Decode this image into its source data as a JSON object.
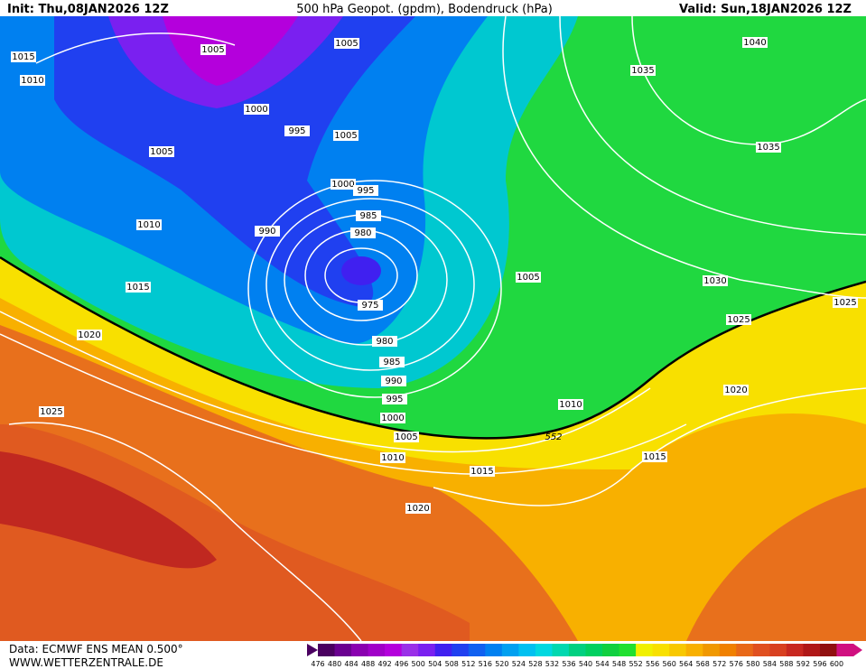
{
  "header": {
    "init": "Init: Thu,08JAN2026 12Z",
    "title": "500 hPa Geopot. (gpdm), Bodendruck (hPa)",
    "valid": "Valid: Sun,18JAN2026 12Z"
  },
  "contour_labels": [
    "1015",
    "1010",
    "1005",
    "1005",
    "1000",
    "995",
    "1005",
    "1005",
    "1000",
    "995",
    "985",
    "980",
    "1010",
    "990",
    "975",
    "1015",
    "1020",
    "980",
    "985",
    "990",
    "995",
    "1000",
    "1005",
    "552",
    "1010",
    "1015",
    "1020",
    "1025",
    "1005",
    "1010",
    "1015",
    "1020",
    "1025",
    "1025",
    "1030",
    "1035",
    "1035",
    "1040"
  ],
  "legend": {
    "values": [
      476,
      480,
      484,
      488,
      492,
      496,
      500,
      504,
      508,
      512,
      516,
      520,
      524,
      528,
      532,
      536,
      540,
      544,
      548,
      552,
      556,
      560,
      564,
      568,
      572,
      576,
      580,
      584,
      588,
      592,
      596,
      600
    ],
    "colors": [
      "#4a0060",
      "#6a0090",
      "#8a00b0",
      "#a000c8",
      "#b400dc",
      "#9a30e8",
      "#7a20f0",
      "#4020f0",
      "#2040f0",
      "#1060f0",
      "#0080f0",
      "#00a0f0",
      "#00c0f0",
      "#00d8e0",
      "#00d8b0",
      "#00d080",
      "#00d060",
      "#10d040",
      "#20e030",
      "#f0f000",
      "#f8e000",
      "#f8c800",
      "#f8b000",
      "#f09800",
      "#f08000",
      "#e86818",
      "#e05020",
      "#d84020",
      "#c82820",
      "#b01818",
      "#901010",
      "#d01080"
    ]
  },
  "footer": {
    "source": "Data: ECMWF ENS MEAN 0.500°",
    "website": "WWW.WETTERZENTRALE.DE"
  }
}
